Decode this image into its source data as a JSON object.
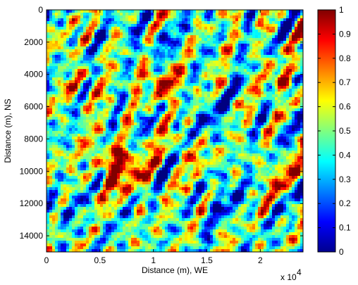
{
  "chart_data": {
    "type": "heatmap",
    "title": "",
    "xlabel": "Distance (m), WE",
    "ylabel": "Distance (m), NS",
    "x_tick_labels": [
      "0",
      "0.5",
      "1",
      "1.5",
      "2"
    ],
    "x_tick_values": [
      0,
      5000,
      10000,
      15000,
      20000
    ],
    "x_multiplier_label": "x 10",
    "x_multiplier_exponent": "4",
    "xlim": [
      0,
      24000
    ],
    "y_tick_labels": [
      "0",
      "2000",
      "4000",
      "6000",
      "8000",
      "10000",
      "12000",
      "14000"
    ],
    "y_tick_values": [
      0,
      2000,
      4000,
      6000,
      8000,
      10000,
      12000,
      14000
    ],
    "ylim": [
      0,
      15000
    ],
    "y_reversed": true,
    "colorbar": {
      "colormap": "jet",
      "range": [
        0,
        1
      ],
      "tick_labels": [
        "0",
        "0.1",
        "0.2",
        "0.3",
        "0.4",
        "0.5",
        "0.6",
        "0.7",
        "0.8",
        "0.9",
        "1"
      ],
      "tick_values": [
        0,
        0.1,
        0.2,
        0.3,
        0.4,
        0.5,
        0.6,
        0.7,
        0.8,
        0.9,
        1
      ]
    },
    "grid": false
  }
}
